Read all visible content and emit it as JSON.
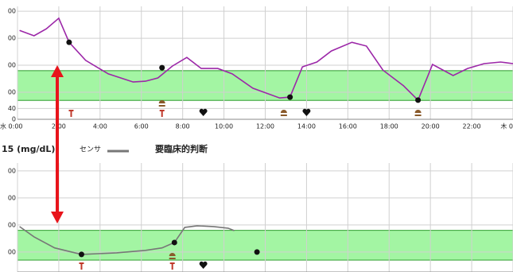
{
  "chart_data": [
    {
      "type": "line",
      "x": [
        0.1,
        0.8,
        1.4,
        2.0,
        2.5,
        3.3,
        4.4,
        5.6,
        6.2,
        6.8,
        7.5,
        8.2,
        8.9,
        9.7,
        10.4,
        11.4,
        12.7,
        13.2,
        13.8,
        14.5,
        15.2,
        16.2,
        16.9,
        17.7,
        18.7,
        19.4,
        20.1,
        21.1,
        21.8,
        22.6,
        23.4,
        24
      ],
      "series": [
        {
          "color": "#9c27a8",
          "values": [
            329,
            309,
            335,
            374,
            285,
            218,
            168,
            138,
            141,
            153,
            197,
            229,
            188,
            188,
            168,
            115,
            79,
            82,
            194,
            212,
            253,
            285,
            271,
            182,
            124,
            71,
            203,
            162,
            188,
            206,
            212,
            206
          ]
        }
      ],
      "points": {
        "x": [
          2.5,
          7.0,
          13.2,
          19.4
        ],
        "values": [
          285,
          191,
          82,
          71
        ]
      },
      "events": {
        "insulin": [
          2.6,
          7.0
        ],
        "meal": [
          7.0,
          12.9,
          19.4
        ],
        "heart": [
          9.0,
          14.0
        ]
      },
      "target_range": [
        70,
        180
      ],
      "xlim": [
        0,
        24
      ],
      "xticks": [
        {
          "value": 0,
          "label": "水 0:00"
        },
        {
          "value": 2,
          "label": "2:00"
        },
        {
          "value": 4,
          "label": "4:00"
        },
        {
          "value": 6,
          "label": "6:00"
        },
        {
          "value": 8,
          "label": "8:00"
        },
        {
          "value": 10,
          "label": "10:00"
        },
        {
          "value": 12,
          "label": "12:00"
        },
        {
          "value": 14,
          "label": "14:00"
        },
        {
          "value": 16,
          "label": "16:00"
        },
        {
          "value": 18,
          "label": "18:00"
        },
        {
          "value": 20,
          "label": "20:00"
        },
        {
          "value": 22,
          "label": "22:00"
        },
        {
          "value": 24,
          "label": "木 0"
        }
      ],
      "ylim": [
        0,
        418
      ],
      "yticks": [
        {
          "value": 400,
          "label": "00"
        },
        {
          "value": 300,
          "label": "00"
        },
        {
          "value": 200,
          "label": "00"
        },
        {
          "value": 100,
          "label": "00"
        },
        40,
        0
      ],
      "grid": true
    },
    {
      "type": "line",
      "title": "15 (mg/dL)",
      "annotation": "要臨床的判断",
      "x": [
        0.1,
        0.8,
        1.8,
        3.1,
        4.8,
        6.2,
        7.0,
        7.6,
        8.1,
        8.7,
        9.5,
        10.2,
        10.5
      ],
      "series": [
        {
          "name": "センサ",
          "color": "#777777",
          "values": [
            194,
            156,
            115,
            91,
            97,
            106,
            115,
            135,
            191,
            197,
            194,
            188,
            179
          ]
        }
      ],
      "points": {
        "x": [
          3.1,
          7.6,
          11.6
        ],
        "values": [
          91,
          135,
          100
        ]
      },
      "events": {
        "insulin": [
          3.1,
          7.5
        ],
        "meal": [
          7.5
        ],
        "heart": [
          9.0
        ]
      },
      "target_range": [
        70,
        180
      ],
      "xlim": [
        0,
        24
      ],
      "xticks": [
        0,
        2,
        4,
        6,
        8,
        10,
        12,
        14,
        16,
        18,
        20,
        22,
        24
      ],
      "ylim": [
        26,
        429
      ],
      "yticks": [
        {
          "value": 400,
          "label": "00"
        },
        {
          "value": 300,
          "label": "00"
        },
        {
          "value": 200,
          "label": "00"
        },
        {
          "value": 100,
          "label": "00"
        }
      ],
      "grid": true
    }
  ]
}
